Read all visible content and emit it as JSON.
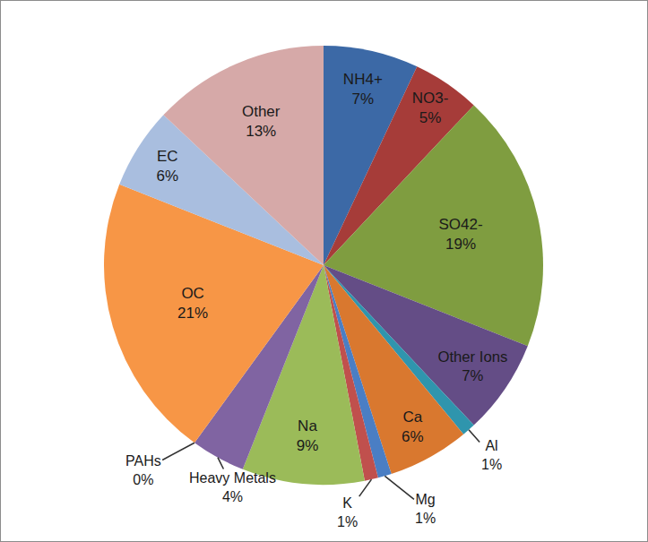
{
  "chart_data": {
    "type": "pie",
    "categories": [
      "NH4+",
      "NO3-",
      "SO42-",
      "Other Ions",
      "Al",
      "Ca",
      "Mg",
      "K",
      "Na",
      "Heavy Metals",
      "PAHs",
      "OC",
      "EC",
      "Other"
    ],
    "values": [
      7,
      5,
      19,
      7,
      1,
      6,
      1,
      1,
      9,
      4,
      0,
      21,
      6,
      13
    ],
    "value_labels": [
      "7%",
      "5%",
      "19%",
      "7%",
      "1%",
      "6%",
      "1%",
      "1%",
      "9%",
      "4%",
      "0%",
      "21%",
      "6%",
      "13%"
    ],
    "colors": [
      "#3c69a6",
      "#a63c39",
      "#7f9d40",
      "#644d86",
      "#2f95ad",
      "#d9782f",
      "#4a7ec4",
      "#c0504d",
      "#9bbb59",
      "#8064a2",
      "#4bacc6",
      "#f79646",
      "#a9bedf",
      "#d6a9a8"
    ],
    "data_labels": true
  }
}
